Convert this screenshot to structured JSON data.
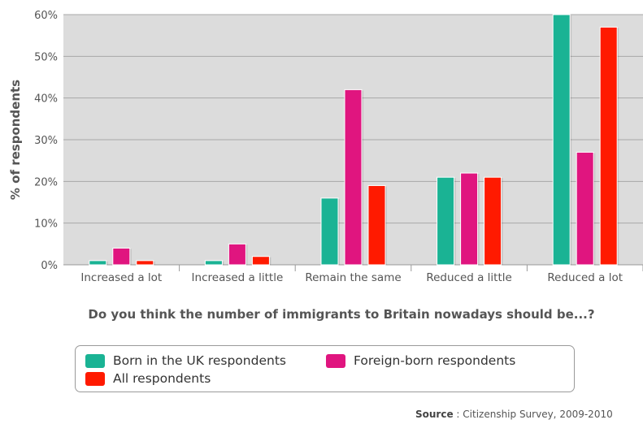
{
  "chart_data": {
    "type": "bar",
    "categories": [
      "Increased a lot",
      "Increased a little",
      "Remain the same",
      "Reduced a little",
      "Reduced a lot"
    ],
    "series": [
      {
        "name": "Born in the UK respondents",
        "color": "#1ab394",
        "values": [
          1,
          1,
          16,
          21,
          60
        ]
      },
      {
        "name": "Foreign-born respondents",
        "color": "#e0157f",
        "values": [
          4,
          5,
          42,
          22,
          27
        ]
      },
      {
        "name": "All respondents",
        "color": "#ff1a00",
        "values": [
          1,
          2,
          19,
          21,
          57
        ]
      }
    ],
    "xlabel": "Do you think the number of immigrants to Britain nowadays should be...?",
    "ylabel": "% of respondents",
    "ylim": [
      0,
      60
    ],
    "yticks": [
      "0%",
      "10%",
      "20%",
      "30%",
      "40%",
      "50%",
      "60%"
    ],
    "grid": true,
    "plot_background": "#dcdcdc",
    "legend_position": "bottom"
  },
  "source": {
    "label": "Source",
    "separator": " : ",
    "text": "Citizenship Survey, 2009-2010"
  }
}
